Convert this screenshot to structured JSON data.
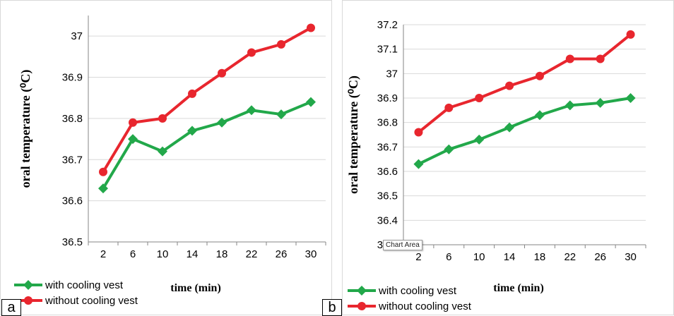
{
  "chart_data": [
    {
      "panel": "a",
      "type": "line",
      "x": [
        2,
        6,
        10,
        14,
        18,
        22,
        26,
        30
      ],
      "categories": [
        "2",
        "6",
        "10",
        "14",
        "18",
        "22",
        "26",
        "30"
      ],
      "series": [
        {
          "name": "with cooling vest",
          "color": "#22a84a",
          "marker": "diamond",
          "values": [
            36.63,
            36.75,
            36.72,
            36.77,
            36.79,
            36.82,
            36.81,
            36.84
          ]
        },
        {
          "name": "without cooling vest",
          "color": "#e8262e",
          "marker": "circle",
          "values": [
            36.67,
            36.79,
            36.8,
            36.86,
            36.91,
            36.96,
            36.98,
            37.02
          ]
        }
      ],
      "xlabel": "time (min)",
      "ylabel": "oral temperature (⁰C)",
      "ylim": [
        36.5,
        37.05
      ],
      "yticks": [
        "36.5",
        "36.6",
        "36.7",
        "36.8",
        "36.9",
        "37"
      ],
      "grid": "horizontal",
      "legend": "bottom-left"
    },
    {
      "panel": "b",
      "type": "line",
      "x": [
        2,
        6,
        10,
        14,
        18,
        22,
        26,
        30
      ],
      "categories": [
        "2",
        "6",
        "10",
        "14",
        "18",
        "22",
        "26",
        "30"
      ],
      "series": [
        {
          "name": "with cooling vest",
          "color": "#22a84a",
          "marker": "diamond",
          "values": [
            36.63,
            36.69,
            36.73,
            36.78,
            36.83,
            36.87,
            36.88,
            36.9
          ]
        },
        {
          "name": "without cooling vest",
          "color": "#e8262e",
          "marker": "circle",
          "values": [
            36.76,
            36.86,
            36.9,
            36.95,
            36.99,
            37.06,
            37.06,
            37.16
          ]
        }
      ],
      "xlabel": "time (min)",
      "ylabel": "oral temperature (⁰C)",
      "ylim": [
        36.3,
        37.2
      ],
      "yticks": [
        "36.3",
        "36.4",
        "36.5",
        "36.6",
        "36.7",
        "36.8",
        "36.9",
        "37",
        "37.1",
        "37.2"
      ],
      "grid": "horizontal",
      "legend": "bottom-left"
    }
  ],
  "panel_tags": {
    "a": "a",
    "b": "b"
  },
  "tooltip": "Chart Area"
}
